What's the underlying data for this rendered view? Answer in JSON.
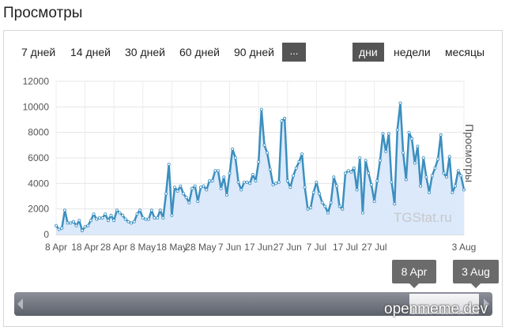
{
  "header": {
    "title": "Просмотры"
  },
  "controls": {
    "ranges": [
      "7 дней",
      "14 дней",
      "30 дней",
      "60 дней",
      "90 дней"
    ],
    "more_label": "...",
    "granularity": [
      "дни",
      "недели",
      "месяцы"
    ],
    "active_granularity": "дни"
  },
  "chart_data": {
    "type": "area",
    "ylabel": "Просмотры",
    "ylim": [
      0,
      12000
    ],
    "yticks": [
      "0",
      "2000",
      "4000",
      "6000",
      "8000",
      "10000",
      "12000"
    ],
    "xticks": [
      "8 Apr",
      "18 Apr",
      "28 Apr",
      "8 May",
      "18 May",
      "28 May",
      "7 Jun",
      "17 Jun",
      "27 Jun",
      "7 Jul",
      "17 Jul",
      "27 Jul",
      "3 Aug"
    ],
    "grid": true,
    "colors": {
      "line": "#3b8fbf",
      "fill": "#dbe9fb"
    },
    "series": [
      {
        "values": [
          700,
          400,
          500,
          1900,
          900,
          900,
          1000,
          700,
          1100,
          300,
          600,
          700,
          1100,
          1600,
          1200,
          1300,
          1300,
          1600,
          1100,
          1500,
          1100,
          1900,
          1700,
          1500,
          1200,
          1000,
          900,
          1000,
          1600,
          1900,
          1300,
          1200,
          1200,
          1900,
          1300,
          1300,
          1900,
          1300,
          3200,
          5500,
          1500,
          3700,
          3400,
          3800,
          3200,
          2900,
          2500,
          3600,
          3800,
          2600,
          3700,
          3800,
          3500,
          4200,
          4200,
          5000,
          5000,
          3600,
          4500,
          3100,
          4800,
          6700,
          6000,
          4100,
          3500,
          4100,
          4100,
          4000,
          4700,
          4200,
          5700,
          9800,
          7000,
          6400,
          5100,
          3900,
          4000,
          4100,
          8900,
          9100,
          4200,
          3700,
          4600,
          5200,
          5700,
          6300,
          3700,
          2000,
          2100,
          3300,
          4100,
          3200,
          2500,
          2200,
          1700,
          2500,
          4500,
          3800,
          2200,
          2000,
          4800,
          5000,
          4900,
          5200,
          3500,
          6000,
          1700,
          5800,
          4800,
          3900,
          2600,
          4200,
          5800,
          7900,
          6500,
          7900,
          4100,
          2400,
          8200,
          10300,
          6400,
          4300,
          8000,
          7500,
          5600,
          6900,
          3800,
          6000,
          4500,
          3300,
          4600,
          5200,
          5900,
          7800,
          4800,
          4500,
          6100,
          3300,
          3800,
          5000,
          4600,
          3500
        ]
      }
    ]
  },
  "watermark": "TGStat.ru",
  "navigator": {
    "from_label": "8 Apr",
    "to_label": "3 Aug",
    "watermark": "openmeme.dev"
  }
}
